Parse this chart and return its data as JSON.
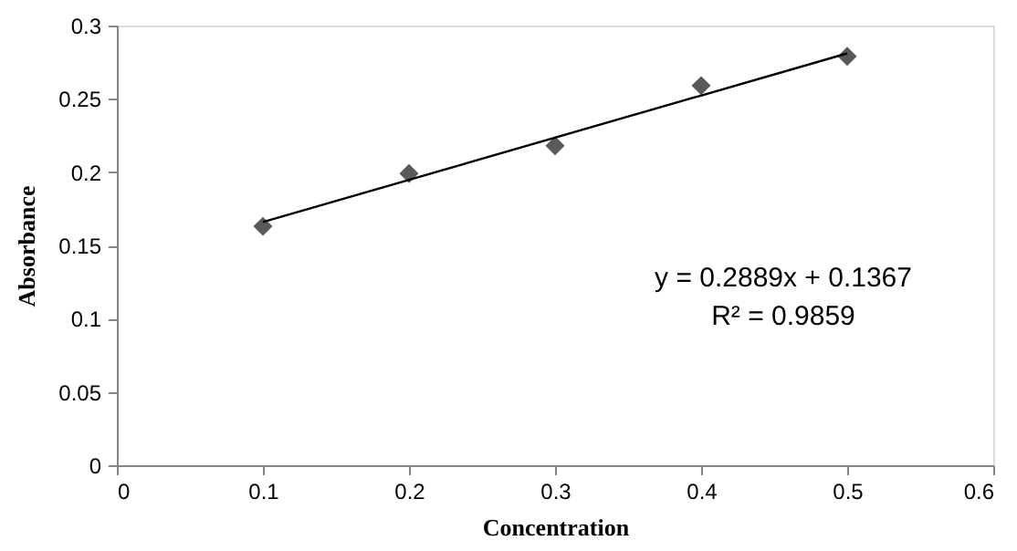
{
  "chart_data": {
    "type": "scatter",
    "xlabel": "Concentration",
    "ylabel": "Absorbance",
    "xlim": [
      0,
      0.6
    ],
    "xticks": [
      0,
      0.1,
      0.2,
      0.3,
      0.4,
      0.5,
      0.6
    ],
    "ylim": [
      0,
      0.3
    ],
    "yticks": [
      0,
      0.05,
      0.1,
      0.15,
      0.2,
      0.25,
      0.3
    ],
    "grid": false,
    "legend": false,
    "marker": "diamond",
    "series": [
      {
        "type": "scatter",
        "color": "#595959",
        "x": [
          0.1,
          0.2,
          0.3,
          0.4,
          0.5
        ],
        "values": [
          0.163,
          0.199,
          0.218,
          0.259,
          0.279
        ]
      },
      {
        "type": "line",
        "color": "#000000",
        "line_style": "solid",
        "marker": "none",
        "x": [
          0.1,
          0.5
        ],
        "values": [
          0.166,
          0.281
        ]
      }
    ],
    "annotations": [
      "y = 0.2889x + 0.1367",
      "R² = 0.9859"
    ]
  }
}
